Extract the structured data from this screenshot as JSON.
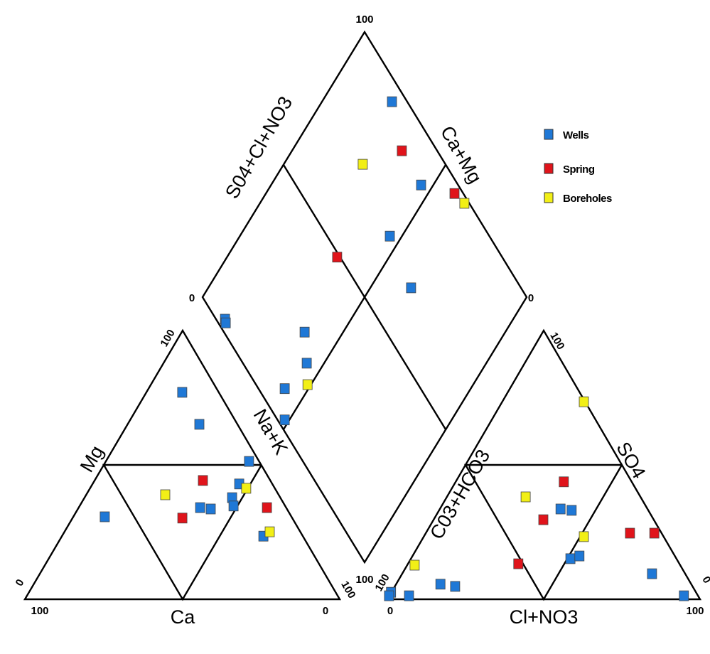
{
  "chart_data": {
    "type": "scatter",
    "subtype": "piper-trilinear",
    "legend": {
      "placement": "top-right",
      "entries": [
        {
          "name": "Wells",
          "color": "#1f78d6"
        },
        {
          "name": "Spring",
          "color": "#e0141b"
        },
        {
          "name": "Boreholes",
          "color": "#f2ef16"
        }
      ]
    },
    "cation_triangle": {
      "axis_labels": {
        "left": "Mg",
        "right": "Na+K",
        "bottom": "Ca"
      },
      "ticks": {
        "top": "100",
        "left_bottom": "0",
        "bottom_left": "100",
        "bottom_right": "0",
        "right_bottom": "100"
      },
      "series": [
        {
          "name": "Wells",
          "points": [
            {
              "mg": 77.0,
              "nak": 11.5
            },
            {
              "mg": 65.1,
              "nak": 22.9
            },
            {
              "mg": 51.3,
              "nak": 45.6
            },
            {
              "mg": 42.9,
              "nak": 46.7
            },
            {
              "mg": 37.8,
              "nak": 47.0
            },
            {
              "mg": 34.7,
              "nak": 49.0
            },
            {
              "mg": 34.1,
              "nak": 38.7
            },
            {
              "mg": 33.6,
              "nak": 42.3
            },
            {
              "mg": 30.7,
              "nak": 10.1
            },
            {
              "mg": 23.5,
              "nak": 64.1
            }
          ]
        },
        {
          "name": "Spring",
          "points": [
            {
              "mg": 44.2,
              "nak": 34.5
            },
            {
              "mg": 30.2,
              "nak": 35.0
            },
            {
              "mg": 34.1,
              "nak": 59.9
            }
          ]
        },
        {
          "name": "Boreholes",
          "points": [
            {
              "mg": 38.9,
              "nak": 25.2
            },
            {
              "mg": 41.3,
              "nak": 49.7
            },
            {
              "mg": 25.1,
              "nak": 65.3
            }
          ]
        }
      ]
    },
    "anion_triangle": {
      "axis_labels": {
        "left": "C03+HCO3",
        "right": "SO4",
        "bottom": "Cl+NO3"
      },
      "ticks": {
        "top": "100",
        "left_bottom": "100",
        "bottom_left": "0",
        "bottom_right": "100",
        "right_bottom": "0"
      },
      "series": [
        {
          "name": "Wells",
          "points": [
            {
              "so4": 2.6,
              "cl": 0
            },
            {
              "so4": 1.3,
              "cl": 0
            },
            {
              "so4": 1.3,
              "cl": 6.4
            },
            {
              "so4": 5.6,
              "cl": 14.3
            },
            {
              "so4": 4.8,
              "cl": 19.4
            },
            {
              "so4": 15.1,
              "cl": 51.1
            },
            {
              "so4": 16.1,
              "cl": 53.5
            },
            {
              "so4": 33.6,
              "cl": 38.7
            },
            {
              "so4": 33.1,
              "cl": 42.5
            },
            {
              "so4": 9.5,
              "cl": 80.0
            },
            {
              "so4": 1.3,
              "cl": 94.3
            }
          ]
        },
        {
          "name": "Spring",
          "points": [
            {
              "so4": 43.7,
              "cl": 34.7
            },
            {
              "so4": 29.6,
              "cl": 35.2
            },
            {
              "so4": 13.2,
              "cl": 35.4
            },
            {
              "so4": 24.6,
              "cl": 65.4
            },
            {
              "so4": 24.6,
              "cl": 73.2
            }
          ]
        },
        {
          "name": "Boreholes",
          "points": [
            {
              "so4": 73.5,
              "cl": 26.2
            },
            {
              "so4": 38.1,
              "cl": 25.3
            },
            {
              "so4": 23.3,
              "cl": 51.3
            },
            {
              "so4": 12.7,
              "cl": 2.5
            }
          ]
        }
      ]
    },
    "diamond": {
      "axis_labels": {
        "upper_left": "S04+Cl+NO3",
        "upper_right": "Ca+Mg"
      },
      "ticks": {
        "top": "100",
        "left": "0",
        "right": "0",
        "bottom": "100"
      },
      "series": [
        {
          "name": "Wells",
          "points": [
            {
              "so4cl": 95.4,
              "camg": 78.3
            },
            {
              "so4cl": 88.7,
              "camg": 53.6
            },
            {
              "so4cl": 69.4,
              "camg": 53.6
            },
            {
              "so4cl": 66.2,
              "camg": 37.3
            },
            {
              "so4cl": 2.9,
              "camg": 88.8
            },
            {
              "so4cl": 2.4,
              "camg": 87.9
            },
            {
              "so4cl": 25.0,
              "camg": 61.8
            },
            {
              "so4cl": 19.8,
              "camg": 55.3
            },
            {
              "so4cl": 8.2,
              "camg": 57.3
            },
            {
              "so4cl": 2.3,
              "camg": 51.4
            }
          ]
        },
        {
          "name": "Spring",
          "points": [
            {
              "so4cl": 89.2,
              "camg": 66.0
            },
            {
              "so4cl": 49.2,
              "camg": 65.9
            },
            {
              "so4cl": 97.4,
              "camg": 41.7
            }
          ]
        },
        {
          "name": "Boreholes",
          "points": [
            {
              "so4cl": 74.6,
              "camg": 75.5
            },
            {
              "so4cl": 98.6,
              "camg": 36.8
            },
            {
              "so4cl": 16.0,
              "camg": 51.0
            }
          ]
        }
      ]
    }
  }
}
